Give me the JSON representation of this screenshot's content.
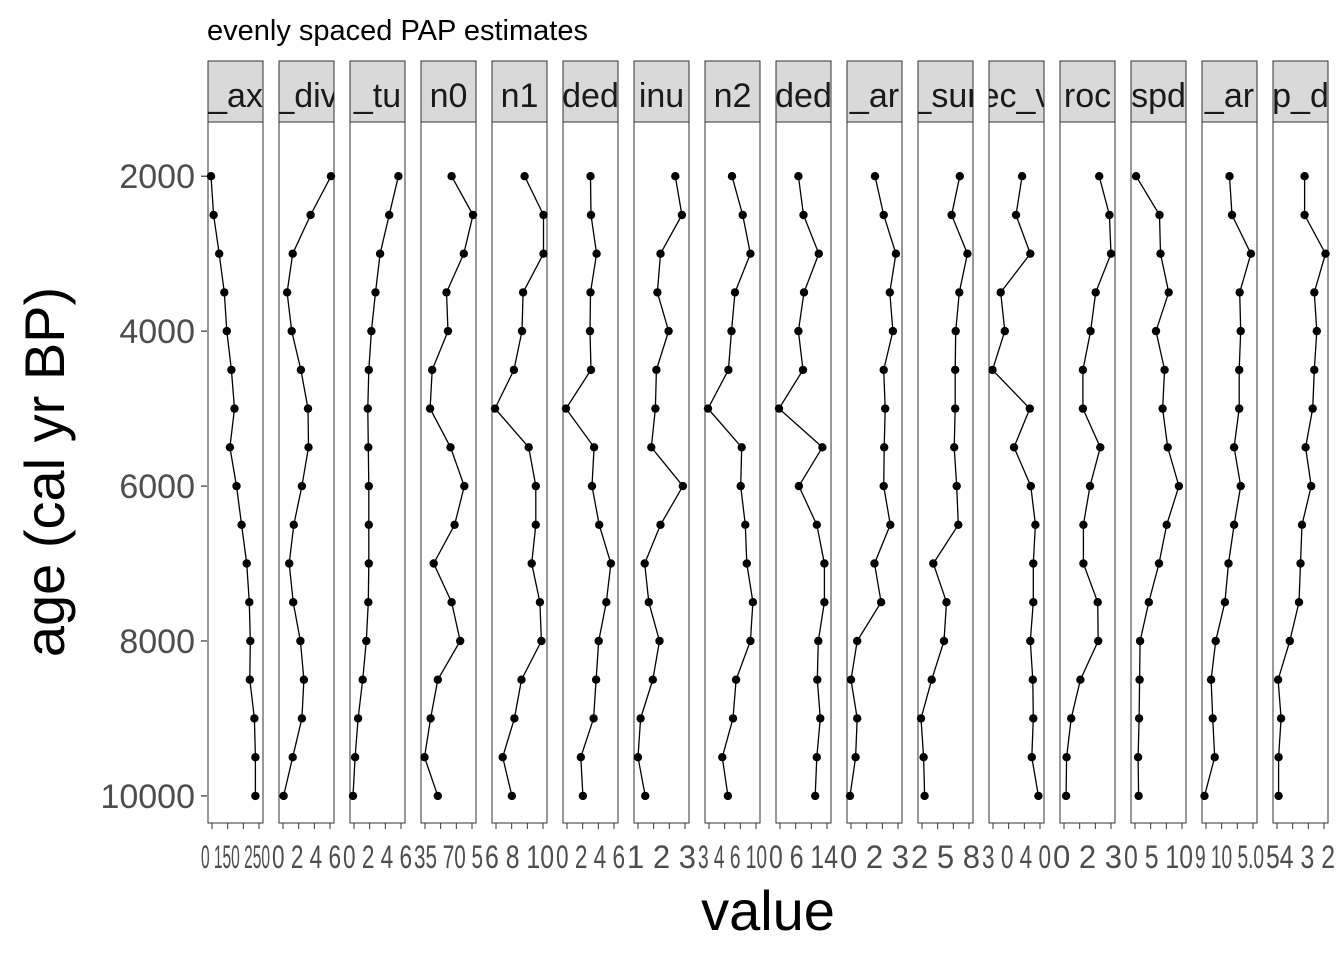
{
  "chart_data": {
    "type": "line",
    "title": "evenly spaced PAP estimates",
    "xlabel": "value",
    "ylabel": "age (cal yr BP)",
    "grid": false,
    "legend": "none",
    "y_reversed": true,
    "ylim": [
      1300,
      10350
    ],
    "yticks": [
      2000,
      4000,
      6000,
      8000,
      10000
    ],
    "y": [
      2000,
      2500,
      3000,
      3500,
      4000,
      4500,
      5000,
      5500,
      6000,
      6500,
      7000,
      7500,
      8000,
      8500,
      9000,
      9500,
      10000
    ],
    "panels": [
      {
        "strip": "_ax",
        "tick_text": "0 150 250",
        "values": [
          0.02,
          0.07,
          0.18,
          0.28,
          0.33,
          0.42,
          0.48,
          0.39,
          0.52,
          0.62,
          0.72,
          0.77,
          0.79,
          0.78,
          0.87,
          0.89,
          0.89
        ]
      },
      {
        "strip": "_div",
        "tick_text": "0 2 4 6",
        "values": [
          0.98,
          0.58,
          0.23,
          0.12,
          0.21,
          0.39,
          0.53,
          0.54,
          0.41,
          0.25,
          0.16,
          0.24,
          0.38,
          0.45,
          0.41,
          0.23,
          0.05
        ]
      },
      {
        "strip": "_tu",
        "tick_text": "0 2 4 6",
        "values": [
          0.91,
          0.73,
          0.55,
          0.46,
          0.38,
          0.33,
          0.31,
          0.32,
          0.33,
          0.33,
          0.33,
          0.32,
          0.28,
          0.21,
          0.12,
          0.06,
          0.02
        ]
      },
      {
        "strip": "n0",
        "tick_text": "35 70 5",
        "values": [
          0.56,
          0.98,
          0.8,
          0.46,
          0.49,
          0.18,
          0.14,
          0.54,
          0.81,
          0.62,
          0.21,
          0.56,
          0.73,
          0.29,
          0.15,
          0.03,
          0.29
        ]
      },
      {
        "strip": "n1",
        "tick_text": "6 8 10",
        "values": [
          0.6,
          0.97,
          0.97,
          0.57,
          0.55,
          0.39,
          0.02,
          0.68,
          0.82,
          0.82,
          0.74,
          0.9,
          0.93,
          0.54,
          0.4,
          0.17,
          0.35
        ]
      },
      {
        "strip": "ded",
        "tick_text": "0 2 4 6",
        "values": [
          0.5,
          0.51,
          0.62,
          0.5,
          0.49,
          0.51,
          0.02,
          0.57,
          0.53,
          0.67,
          0.9,
          0.81,
          0.66,
          0.61,
          0.56,
          0.31,
          0.35
        ]
      },
      {
        "strip": "inu",
        "tick_text": "1 2 3",
        "values": [
          0.77,
          0.9,
          0.48,
          0.42,
          0.64,
          0.4,
          0.38,
          0.3,
          0.92,
          0.48,
          0.17,
          0.25,
          0.46,
          0.33,
          0.09,
          0.04,
          0.18
        ]
      },
      {
        "strip": "n2",
        "tick_text": "3 4 6 10",
        "values": [
          0.49,
          0.7,
          0.85,
          0.55,
          0.48,
          0.42,
          0.02,
          0.68,
          0.66,
          0.75,
          0.78,
          0.9,
          0.85,
          0.57,
          0.51,
          0.3,
          0.41
        ]
      },
      {
        "strip": "ded",
        "tick_text": "0 6 14",
        "values": [
          0.4,
          0.5,
          0.8,
          0.51,
          0.4,
          0.49,
          0.02,
          0.87,
          0.41,
          0.76,
          0.91,
          0.91,
          0.79,
          0.77,
          0.83,
          0.76,
          0.73
        ]
      },
      {
        "strip": "_ar",
        "tick_text": "0 2 3",
        "values": [
          0.51,
          0.68,
          0.92,
          0.8,
          0.86,
          0.68,
          0.71,
          0.69,
          0.68,
          0.81,
          0.5,
          0.63,
          0.16,
          0.04,
          0.16,
          0.13,
          0.02
        ]
      },
      {
        "strip": "_sur",
        "tick_text": "2 5 8",
        "values": [
          0.78,
          0.62,
          0.93,
          0.77,
          0.7,
          0.69,
          0.69,
          0.67,
          0.72,
          0.75,
          0.26,
          0.52,
          0.47,
          0.23,
          0.02,
          0.07,
          0.09
        ]
      },
      {
        "strip": "ec_v",
        "tick_text": "3 0 4 0",
        "values": [
          0.61,
          0.49,
          0.77,
          0.19,
          0.27,
          0.03,
          0.76,
          0.45,
          0.78,
          0.87,
          0.83,
          0.83,
          0.77,
          0.82,
          0.83,
          0.8,
          0.93
        ]
      },
      {
        "strip": "roc",
        "tick_text": "0 2 3",
        "values": [
          0.73,
          0.93,
          0.96,
          0.66,
          0.56,
          0.41,
          0.41,
          0.75,
          0.55,
          0.42,
          0.42,
          0.7,
          0.71,
          0.36,
          0.18,
          0.09,
          0.08
        ]
      },
      {
        "strip": "spd",
        "tick_text": "0 5 10",
        "values": [
          0.06,
          0.52,
          0.54,
          0.7,
          0.45,
          0.62,
          0.58,
          0.68,
          0.9,
          0.66,
          0.51,
          0.31,
          0.14,
          0.13,
          0.12,
          0.1,
          0.11
        ]
      },
      {
        "strip": "_ar",
        "tick_text": "9 10 5.0",
        "values": [
          0.5,
          0.55,
          0.92,
          0.7,
          0.72,
          0.69,
          0.69,
          0.59,
          0.72,
          0.59,
          0.48,
          0.41,
          0.23,
          0.14,
          0.17,
          0.21,
          0.01
        ]
      },
      {
        "strip": "p_d",
        "tick_text": "54 3 2",
        "values": [
          0.58,
          0.58,
          0.99,
          0.77,
          0.82,
          0.77,
          0.74,
          0.6,
          0.71,
          0.53,
          0.5,
          0.47,
          0.29,
          0.06,
          0.12,
          0.07,
          0.07
        ]
      }
    ]
  }
}
